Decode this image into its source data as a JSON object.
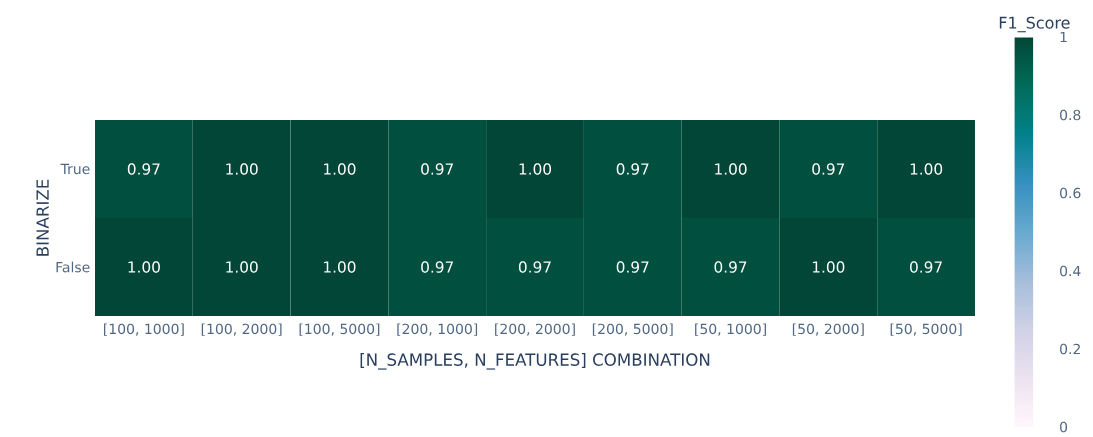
{
  "chart_data": {
    "type": "heatmap",
    "xlabel": "[N_SAMPLES, N_FEATURES] COMBINATION",
    "ylabel": "BINARIZE",
    "clabel": "F1_Score",
    "categories": [
      "[100, 1000]",
      "[100, 2000]",
      "[100, 5000]",
      "[200, 1000]",
      "[200, 2000]",
      "[200, 5000]",
      "[50, 1000]",
      "[50, 2000]",
      "[50, 5000]"
    ],
    "y_categories": [
      "True",
      "False"
    ],
    "cells": [
      [
        0.97,
        1.0,
        1.0,
        0.97,
        1.0,
        0.97,
        1.0,
        0.97,
        1.0
      ],
      [
        1.0,
        1.0,
        1.0,
        0.97,
        0.97,
        0.97,
        0.97,
        1.0,
        0.97
      ]
    ],
    "cell_labels": [
      [
        "0.97",
        "1.00",
        "1.00",
        "0.97",
        "1.00",
        "0.97",
        "1.00",
        "0.97",
        "1.00"
      ],
      [
        "1.00",
        "1.00",
        "1.00",
        "0.97",
        "0.97",
        "0.97",
        "0.97",
        "1.00",
        "0.97"
      ]
    ],
    "clim": [
      0,
      1
    ],
    "cticks": [
      0,
      0.2,
      0.4,
      0.6,
      0.8,
      1
    ]
  }
}
